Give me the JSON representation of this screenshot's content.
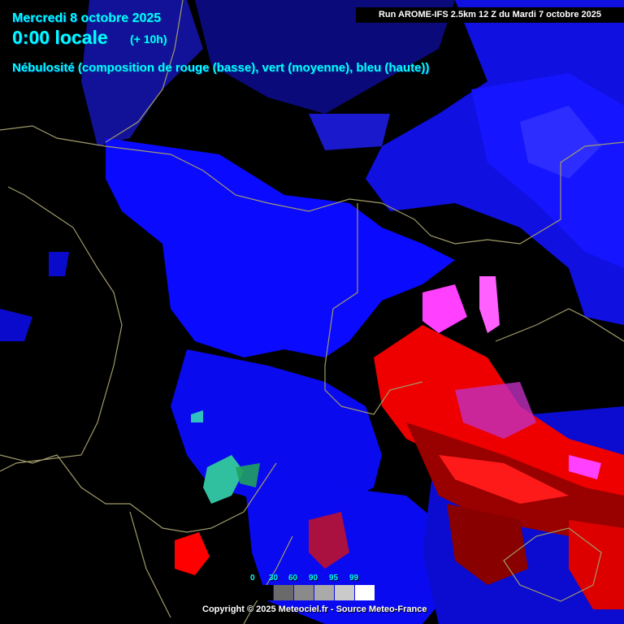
{
  "header": {
    "date": "Mercredi 8 octobre 2025",
    "time": "0:00 locale",
    "offset": "(+ 10h)",
    "description": "Nébulosité (composition de rouge (basse), vert (moyenne), bleu (haute))",
    "run": "Run AROME-IFS 2.5km 12 Z du Mardi 7 octobre 2025"
  },
  "legend": {
    "labels": [
      "0",
      "30",
      "60",
      "90",
      "95",
      "99"
    ],
    "colors": [
      "#000000",
      "#6a6a6a",
      "#8a8a8a",
      "#aaaaaa",
      "#cacaca",
      "#ffffff"
    ]
  },
  "footer": {
    "copyright": "Copyright © 2025 Meteociel.fr - Source Meteo-France"
  },
  "colors": {
    "high_cloud": "#0000ff",
    "low_cloud": "#ff0000",
    "mid_cloud": "#00ff00",
    "mixed": "#ff40ff",
    "border": "#a09a6a"
  }
}
